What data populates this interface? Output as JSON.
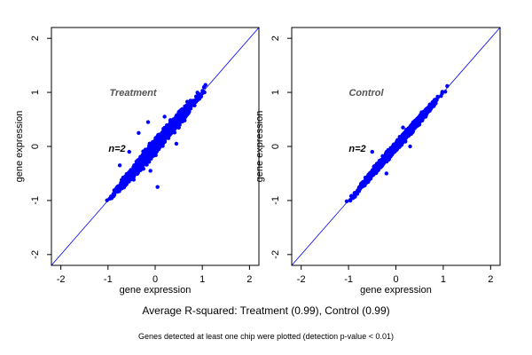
{
  "summary_text": "Average R-squared: Treatment (0.99), Control (0.99)",
  "footnote_text": "Genes detected at least one chip were plotted (detection p-value < 0.01)",
  "colors": {
    "points": "#0000ff",
    "diagonal": "#0000ff",
    "axis": "#000000",
    "panel_label": "#555555"
  },
  "chart_data": [
    {
      "type": "scatter",
      "title": "",
      "panel_label": "Treatment",
      "annotation": "n=2",
      "xlabel": "gene expression",
      "ylabel": "gene expression",
      "xlim": [
        -2.2,
        2.2
      ],
      "ylim": [
        -2.2,
        2.2
      ],
      "xticks": [
        -2,
        -1,
        0,
        1,
        2
      ],
      "yticks": [
        -2,
        -1,
        0,
        1,
        2
      ],
      "reference_line": "y = x",
      "point_cloud": {
        "x_range": [
          -1.15,
          1.2
        ],
        "spread": 0.12,
        "count": 1500,
        "seed": 7
      },
      "points": [
        {
          "x": -0.35,
          "y": 0.25
        },
        {
          "x": -0.15,
          "y": 0.45
        },
        {
          "x": 0.05,
          "y": -0.75
        },
        {
          "x": -0.55,
          "y": -0.1
        },
        {
          "x": 0.2,
          "y": 0.55
        },
        {
          "x": -0.75,
          "y": -0.35
        },
        {
          "x": 0.45,
          "y": 0.05
        },
        {
          "x": -0.1,
          "y": -0.45
        }
      ]
    },
    {
      "type": "scatter",
      "title": "",
      "panel_label": "Control",
      "annotation": "n=2",
      "xlabel": "gene expression",
      "ylabel": "gene expression",
      "xlim": [
        -2.2,
        2.2
      ],
      "ylim": [
        -2.2,
        2.2
      ],
      "xticks": [
        -2,
        -1,
        0,
        1,
        2
      ],
      "yticks": [
        -2,
        -1,
        0,
        1,
        2
      ],
      "reference_line": "y = x",
      "point_cloud": {
        "x_range": [
          -1.15,
          1.15
        ],
        "spread": 0.07,
        "count": 1500,
        "seed": 21
      },
      "points": [
        {
          "x": -0.5,
          "y": -0.1
        },
        {
          "x": 0.15,
          "y": 0.35
        },
        {
          "x": -0.2,
          "y": -0.5
        },
        {
          "x": 0.3,
          "y": 0.0
        }
      ]
    }
  ]
}
